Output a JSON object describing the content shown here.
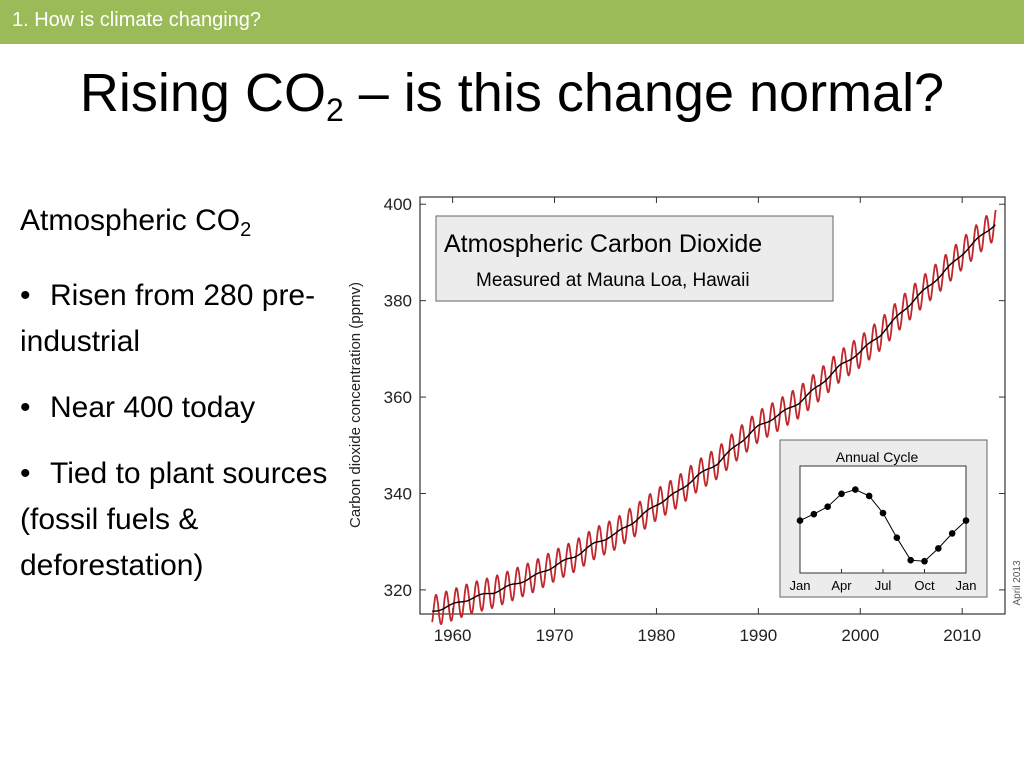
{
  "header": {
    "section_label": "1. How is climate changing?"
  },
  "slide": {
    "title_main": "Rising CO",
    "title_sub": "2",
    "title_rest": " – is this change normal?"
  },
  "body": {
    "heading_main": "Atmospheric CO",
    "heading_sub": "2",
    "bullets": [
      "Risen from 280 pre-industrial",
      "Near 400 today",
      "Tied to plant sources (fossil fuels & deforestation)"
    ]
  },
  "colors": {
    "header_bar": "#9bbb59",
    "seasonal_line": "#c0282d",
    "trend_line": "#000000"
  },
  "chart_data": [
    {
      "type": "line",
      "title": "Atmospheric Carbon Dioxide",
      "subtitle": "Measured at Mauna Loa, Hawaii",
      "xlabel": "",
      "ylabel": "Carbon dioxide concentration (ppmv)",
      "xlim": [
        1956.8,
        2014.2
      ],
      "ylim": [
        315,
        401.5
      ],
      "x_ticks": [
        1960,
        1970,
        1980,
        1990,
        2000,
        2010
      ],
      "y_ticks": [
        320,
        340,
        360,
        380,
        400
      ],
      "grid": false,
      "annotation": "April 2013",
      "series": [
        {
          "kind": "trend",
          "x": [
            1958,
            1960,
            1962,
            1964,
            1966,
            1968,
            1970,
            1972,
            1974,
            1976,
            1978,
            1980,
            1982,
            1984,
            1986,
            1988,
            1990,
            1992,
            1994,
            1996,
            1998,
            2000,
            2002,
            2004,
            2006,
            2008,
            2010,
            2012,
            2013.3
          ],
          "y": [
            315.5,
            316.9,
            318.4,
            319.5,
            321.1,
            322.8,
            325.0,
            327.0,
            329.7,
            331.6,
            334.5,
            337.7,
            340.2,
            343.6,
            346.3,
            350.3,
            353.9,
            356.3,
            358.9,
            362.5,
            366.4,
            369.4,
            373.0,
            377.5,
            381.6,
            385.5,
            389.7,
            393.7,
            396.0
          ]
        },
        {
          "kind": "seasonal",
          "amplitude_ppm": 3.2,
          "peak_month": "May"
        }
      ]
    },
    {
      "type": "line",
      "title": "Annual Cycle",
      "x_ticks": [
        "Jan",
        "Apr",
        "Jul",
        "Oct",
        "Jan"
      ],
      "months": [
        1,
        2,
        3,
        4,
        5,
        6,
        7,
        8,
        9,
        10,
        11,
        12,
        13
      ],
      "values": [
        -0.1,
        0.5,
        1.2,
        2.4,
        2.8,
        2.2,
        0.6,
        -1.7,
        -3.8,
        -3.9,
        -2.7,
        -1.3,
        -0.1
      ],
      "ylim": [
        -5,
        5
      ]
    }
  ]
}
